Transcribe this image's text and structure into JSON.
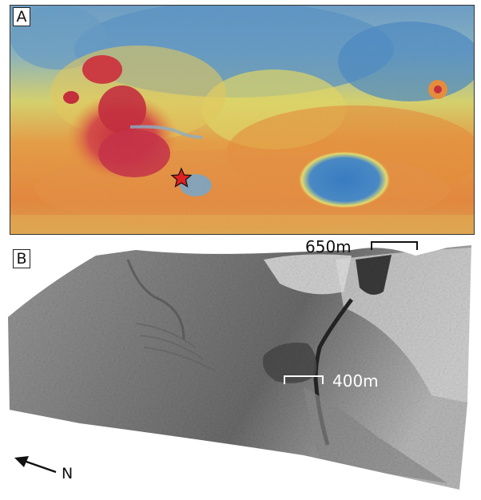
{
  "panel_a": {
    "label": "A"
  },
  "panel_b": {
    "label": "B"
  },
  "scale_bars": {
    "top": "650m",
    "middle": "400m"
  },
  "north_arrow": {
    "label": "N"
  },
  "colors": {
    "low": "#3f7fc0",
    "mid_low": "#9fc3b8",
    "mid": "#e8d860",
    "high": "#e89040",
    "peak": "#c83040",
    "marker": "#e02020"
  }
}
